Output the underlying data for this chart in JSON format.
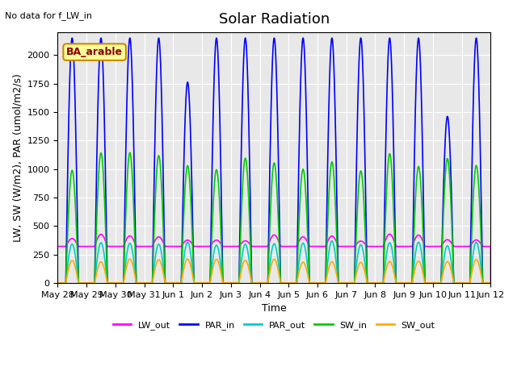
{
  "title": "Solar Radiation",
  "subtitle": "No data for f_LW_in",
  "ylabel": "LW, SW (W/m2), PAR (umol/m2/s)",
  "xlabel": "Time",
  "ylim": [
    0,
    2200
  ],
  "legend_box_label": "BA_arable",
  "series": {
    "LW_out": {
      "color": "#ff00ff",
      "peak": 430,
      "base": 320
    },
    "PAR_in": {
      "color": "#0000ff",
      "peak": 2150,
      "base": 0
    },
    "PAR_out": {
      "color": "#00cccc",
      "peak": 380,
      "base": 0
    },
    "SW_in": {
      "color": "#00cc00",
      "peak": 1150,
      "base": 0
    },
    "SW_out": {
      "color": "#ffaa00",
      "peak": 210,
      "base": 0
    }
  },
  "n_days": 15,
  "background_color": "#e8e8e8",
  "xtick_labels": [
    "May 28",
    "May 29",
    "May 30",
    "May 31",
    "Jun 1",
    "Jun 2",
    "Jun 3",
    "Jun 4",
    "Jun 5",
    "Jun 6",
    "Jun 7",
    "Jun 8",
    "Jun 9",
    "Jun 10",
    "Jun 11",
    "Jun 12"
  ],
  "grid_color": "#ffffff",
  "title_fontsize": 13,
  "label_fontsize": 9,
  "tick_fontsize": 8,
  "par_in_day_variations": [
    1.0,
    1.0,
    1.0,
    1.0,
    0.82,
    1.0,
    1.0,
    1.0,
    1.0,
    1.0,
    1.0,
    1.0,
    1.0,
    0.68,
    1.0,
    1.0
  ]
}
